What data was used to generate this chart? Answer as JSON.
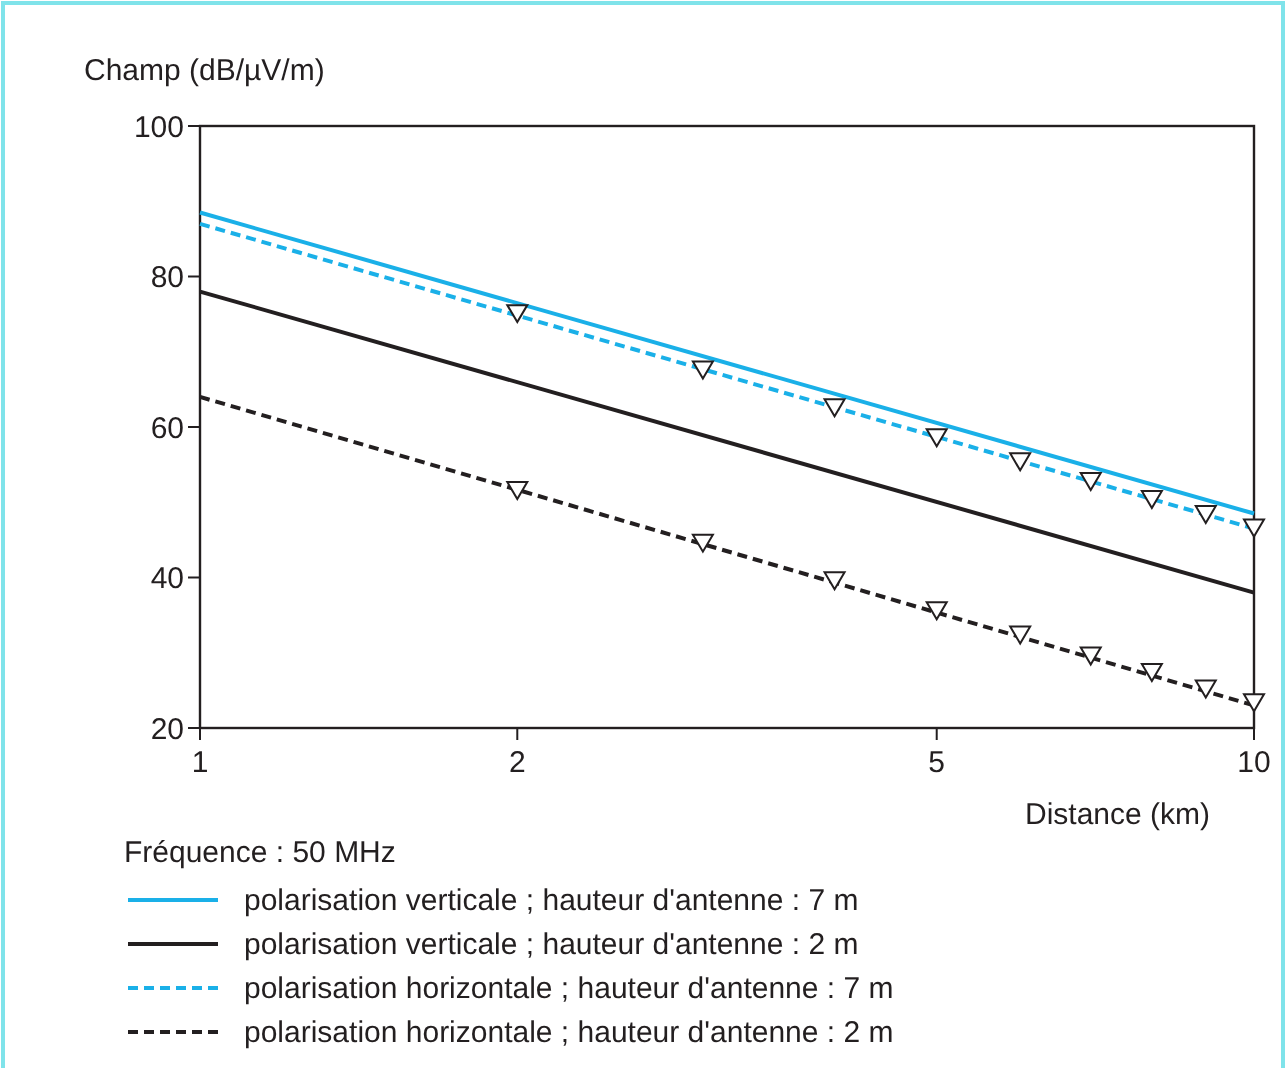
{
  "chart_data": {
    "type": "line",
    "xlabel": "Distance (km)",
    "ylabel": "Champ (dB/µV/m)",
    "log": "x",
    "xlim": [
      1,
      10
    ],
    "xticks": [
      1,
      2,
      5,
      10
    ],
    "ylim": [
      20,
      100
    ],
    "yticks": [
      20,
      40,
      60,
      80,
      100
    ],
    "grid": false,
    "legend": "bottom",
    "annotations": [
      "Fréquence : 50 MHz"
    ],
    "series": [
      {
        "name": "polarisation verticale ; hauteur d'antenne : 7 m",
        "color": "#1ab0e8",
        "x": [
          1,
          10
        ],
        "values": [
          88.5,
          48.5
        ],
        "line_style": "solid"
      },
      {
        "name": "polarisation verticale ; hauteur d'antenne : 2 m",
        "color": "#231f20",
        "x": [
          1,
          10
        ],
        "values": [
          78,
          38
        ],
        "line_style": "solid"
      },
      {
        "name": "polarisation horizontale ; hauteur d'antenne : 7 m",
        "color": "#1ab0e8",
        "x": [
          1,
          10
        ],
        "values": [
          87,
          46.5
        ],
        "line_style": "dashed"
      },
      {
        "name": "polarisation horizontale ; hauteur d'antenne : 2 m",
        "color": "#231f20",
        "x": [
          1,
          10
        ],
        "values": [
          64,
          23
        ],
        "line_style": "dashed"
      },
      {
        "type": "scatter",
        "color": "#231f20",
        "marker": "triangle",
        "x": [
          2,
          3,
          4,
          5,
          6,
          7,
          8,
          9,
          10
        ],
        "values": [
          75,
          67.5,
          62.5,
          58.5,
          55.3,
          52.7,
          50.3,
          48.3,
          46.5
        ]
      },
      {
        "type": "scatter",
        "color": "#231f20",
        "marker": "triangle",
        "x": [
          2,
          3,
          4,
          5,
          6,
          7,
          8,
          9,
          10
        ],
        "values": [
          51.5,
          44.5,
          39.5,
          35.5,
          32.3,
          29.5,
          27.3,
          25.1,
          23.3
        ]
      }
    ]
  }
}
